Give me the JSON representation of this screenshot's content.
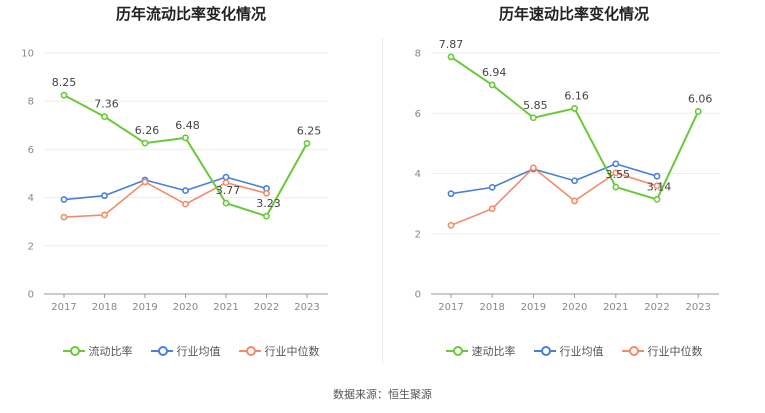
{
  "source": "数据来源：恒生聚源",
  "colors": {
    "main": "#6ac93a",
    "avg": "#4a7fd8",
    "median": "#f08c6a",
    "grid": "#eeeeee",
    "axis": "#999999"
  },
  "chart_data": [
    {
      "type": "line",
      "title": "历年流动比率变化情况",
      "categories": [
        "2017",
        "2018",
        "2019",
        "2020",
        "2021",
        "2022",
        "2023"
      ],
      "ylim": [
        0,
        10
      ],
      "yticks": [
        0,
        2,
        4,
        6,
        8,
        10
      ],
      "legend_placement": "bottom",
      "grid": true,
      "series": [
        {
          "name": "流动比率",
          "role": "main",
          "values": [
            8.25,
            7.36,
            6.26,
            6.48,
            3.77,
            3.23,
            6.25
          ],
          "labels": [
            "8.25",
            "7.36",
            "6.26",
            "6.48",
            "3.77",
            "3.23",
            "6.25"
          ]
        },
        {
          "name": "行业均值",
          "role": "avg",
          "values": [
            3.92,
            4.08,
            4.73,
            4.29,
            4.85,
            4.38,
            null
          ]
        },
        {
          "name": "行业中位数",
          "role": "median",
          "values": [
            3.19,
            3.28,
            4.65,
            3.73,
            4.62,
            4.18,
            null
          ]
        }
      ]
    },
    {
      "type": "line",
      "title": "历年速动比率变化情况",
      "categories": [
        "2017",
        "2018",
        "2019",
        "2020",
        "2021",
        "2022",
        "2023"
      ],
      "ylim": [
        0,
        8
      ],
      "yticks": [
        0,
        2,
        4,
        6,
        8
      ],
      "legend_placement": "bottom",
      "grid": true,
      "series": [
        {
          "name": "速动比率",
          "role": "main",
          "values": [
            7.87,
            6.94,
            5.85,
            6.16,
            3.55,
            3.14,
            6.06
          ],
          "labels": [
            "7.87",
            "6.94",
            "5.85",
            "6.16",
            "3.55",
            "3.14",
            "6.06"
          ]
        },
        {
          "name": "行业均值",
          "role": "avg",
          "values": [
            3.33,
            3.54,
            4.15,
            3.76,
            4.32,
            3.91,
            null
          ]
        },
        {
          "name": "行业中位数",
          "role": "median",
          "values": [
            2.28,
            2.83,
            4.19,
            3.09,
            4.02,
            3.59,
            null
          ]
        }
      ]
    }
  ]
}
